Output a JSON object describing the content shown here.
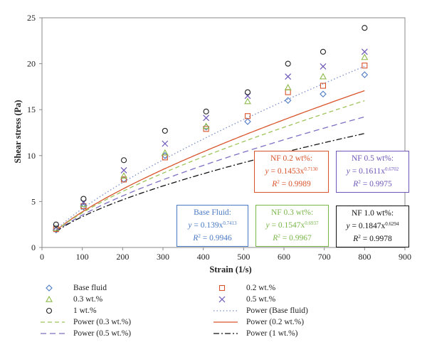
{
  "chart_data": {
    "type": "scatter",
    "xlabel": "Strain (1/s)",
    "ylabel": "Shear stress (Pa)",
    "xlim": [
      0,
      900
    ],
    "ylim": [
      0,
      25
    ],
    "xticks": [
      0,
      100,
      200,
      300,
      400,
      500,
      600,
      700,
      800,
      900
    ],
    "yticks": [
      0,
      5,
      10,
      15,
      20,
      25
    ],
    "grid": false,
    "legend_position": "bottom",
    "x": [
      35,
      103,
      203,
      305,
      407,
      510,
      610,
      697,
      800
    ],
    "series": [
      {
        "name": "Base fluid",
        "marker": "diamond",
        "color": "#4a79c4",
        "values": [
          1.9,
          4.4,
          7.4,
          10.0,
          13.1,
          13.7,
          16.0,
          16.7,
          18.8
        ]
      },
      {
        "name": "0.2 wt.%",
        "marker": "square",
        "color": "#d9542b",
        "values": [
          2.0,
          4.5,
          7.4,
          9.8,
          12.9,
          14.3,
          16.9,
          17.6,
          19.8
        ]
      },
      {
        "name": "0.3 wt.%",
        "marker": "triangle",
        "color": "#8dbb4a",
        "values": [
          2.1,
          4.7,
          7.8,
          10.3,
          13.2,
          15.9,
          17.4,
          18.6,
          20.7
        ]
      },
      {
        "name": "0.5 wt.%",
        "marker": "cross",
        "color": "#6e57b8",
        "values": [
          2.2,
          4.9,
          8.4,
          11.3,
          14.1,
          16.5,
          18.6,
          19.7,
          21.3
        ]
      },
      {
        "name": "1 wt.%",
        "marker": "circle",
        "color": "#222222",
        "values": [
          2.5,
          5.3,
          9.5,
          12.7,
          14.8,
          16.9,
          20.0,
          21.3,
          23.9
        ]
      }
    ],
    "fits": [
      {
        "name": "Power (Base fluid)",
        "a": 0.139,
        "b": 0.7413,
        "color": "#7b8ec9",
        "dash": "1.5,3"
      },
      {
        "name": "Power (0.2 wt.%)",
        "a": 0.1453,
        "b": 0.713,
        "color": "#d9542b",
        "dash": ""
      },
      {
        "name": "Power (0.3 wt.%)",
        "a": 0.1547,
        "b": 0.6937,
        "color": "#9ec45a",
        "dash": "6,4"
      },
      {
        "name": "Power (0.5 wt.%)",
        "a": 0.1611,
        "b": 0.6702,
        "color": "#7e6fc2",
        "dash": "8,5"
      },
      {
        "name": "Power (1 wt.%)",
        "a": 0.1847,
        "b": 0.6294,
        "color": "#111111",
        "dash": "8,3,2,3"
      }
    ],
    "annotations": [
      {
        "title": "Base Fluid:",
        "y_label": "y",
        "eq": " = 0.139x",
        "exp": "0.7413",
        "r_label": "R",
        "r_sup": "2",
        "r_val": " = 0.9946",
        "color": "#4a79c4"
      },
      {
        "title": "NF 0.2 wt%:",
        "y_label": "y",
        "eq": " = 0.1453x",
        "exp": "0.7130",
        "r_label": "R",
        "r_sup": "2",
        "r_val": " = 0.9989",
        "color": "#d9542b"
      },
      {
        "title": "NF 0.3 wt%:",
        "y_label": "y",
        "eq": " = 0.1547x",
        "exp": "0.6937",
        "r_label": "R",
        "r_sup": "2",
        "r_val": " = 0.9967",
        "color": "#7ab648"
      },
      {
        "title": "NF 0.5 wt%:",
        "y_label": "y",
        "eq": " = 0.1611x",
        "exp": "0.6702",
        "r_label": "R",
        "r_sup": "2",
        "r_val": " = 0.9975",
        "color": "#6e57b8"
      },
      {
        "title": "NF 1.0 wt%:",
        "y_label": "y",
        "eq": " = 0.1847x",
        "exp": "0.6294",
        "r_label": "R",
        "r_sup": "2",
        "r_val": " = 0.9978",
        "color": "#111111"
      }
    ]
  },
  "legend": {
    "items": [
      {
        "label": "Base fluid",
        "kind": "diamond",
        "color": "#4a79c4"
      },
      {
        "label": "0.2 wt.%",
        "kind": "square",
        "color": "#d9542b"
      },
      {
        "label": "0.3 wt.%",
        "kind": "triangle",
        "color": "#8dbb4a"
      },
      {
        "label": "0.5 wt.%",
        "kind": "cross",
        "color": "#6e57b8"
      },
      {
        "label": "1 wt.%",
        "kind": "circle",
        "color": "#222222"
      },
      {
        "label": "Power (Base fluid)",
        "kind": "line",
        "color": "#7b8ec9",
        "dash": "1.5,3"
      },
      {
        "label": "Power (0.2 wt.%)",
        "kind": "line",
        "color": "#d9542b",
        "dash": ""
      },
      {
        "label": "Power (0.3 wt.%)",
        "kind": "line",
        "color": "#9ec45a",
        "dash": "6,4"
      },
      {
        "label": "Power (0.5 wt.%)",
        "kind": "line",
        "color": "#7e6fc2",
        "dash": "8,5"
      },
      {
        "label": "Power (1 wt.%)",
        "kind": "line",
        "color": "#111111",
        "dash": "8,3,2,3"
      }
    ]
  }
}
